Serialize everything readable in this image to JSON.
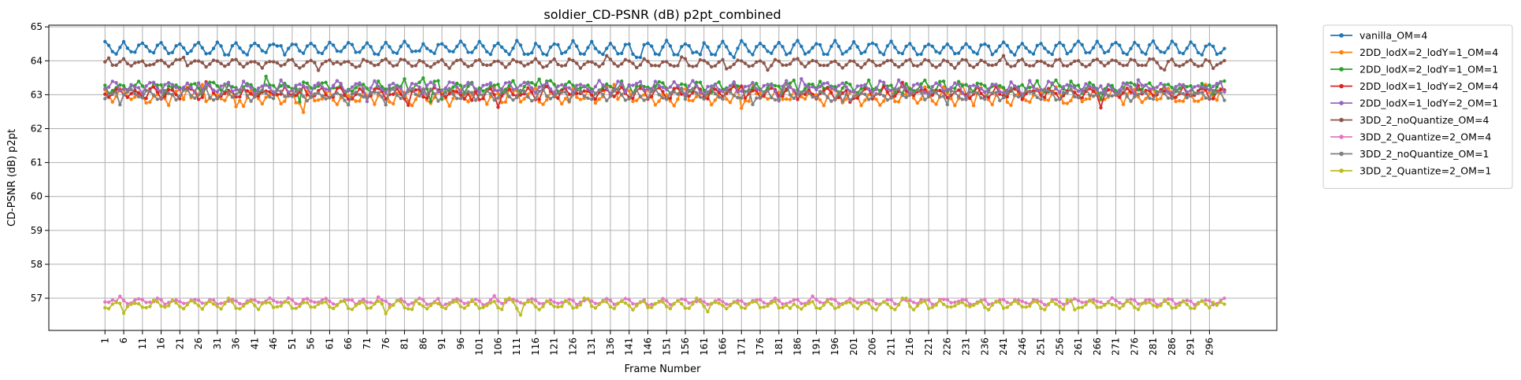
{
  "chart_data": {
    "type": "line",
    "title": "soldier_CD-PSNR (dB) p2pt_combined",
    "xlabel": "Frame Number",
    "ylabel": "CD-PSNR (dB) p2pt",
    "xlim": [
      -14,
      314
    ],
    "ylim": [
      56.05,
      65.05
    ],
    "y_ticks": [
      57,
      58,
      59,
      60,
      61,
      62,
      63,
      64,
      65
    ],
    "x_ticks": [
      1,
      6,
      11,
      16,
      21,
      26,
      31,
      36,
      41,
      46,
      51,
      56,
      61,
      66,
      71,
      76,
      81,
      86,
      91,
      96,
      101,
      106,
      111,
      116,
      121,
      126,
      131,
      136,
      141,
      146,
      151,
      156,
      161,
      166,
      171,
      176,
      181,
      186,
      191,
      196,
      201,
      206,
      211,
      216,
      221,
      226,
      231,
      236,
      241,
      246,
      251,
      256,
      261,
      266,
      271,
      276,
      281,
      286,
      291,
      296
    ],
    "x_range": [
      1,
      300
    ],
    "grid": true,
    "legend_placement": "outside-top-right",
    "series": [
      {
        "name": "vanilla_OM=4",
        "color": "#1f77b4",
        "mean": 64.37,
        "amplitude": 0.17,
        "period": 5,
        "phase": 0.3,
        "noise": 0.06,
        "min": 64.1,
        "max": 64.6
      },
      {
        "name": "2DD_lodX=2_lodY=1_OM=4",
        "color": "#ff7f0e",
        "mean": 62.95,
        "amplitude": 0.18,
        "period": 5,
        "phase": 1.1,
        "noise": 0.12,
        "min": 62.4,
        "max": 63.3
      },
      {
        "name": "2DD_lodX=2_lodY=1_OM=1",
        "color": "#2ca02c",
        "mean": 63.22,
        "amplitude": 0.12,
        "period": 5,
        "phase": 2.0,
        "noise": 0.1,
        "min": 62.8,
        "max": 63.6
      },
      {
        "name": "2DD_lodX=1_lodY=2_OM=4",
        "color": "#d62728",
        "mean": 63.05,
        "amplitude": 0.13,
        "period": 5,
        "phase": 2.9,
        "noise": 0.09,
        "min": 62.4,
        "max": 63.4
      },
      {
        "name": "2DD_lodX=1_lodY=2_OM=1",
        "color": "#9467bd",
        "mean": 63.22,
        "amplitude": 0.13,
        "period": 5,
        "phase": 3.7,
        "noise": 0.09,
        "min": 62.8,
        "max": 63.6
      },
      {
        "name": "3DD_2_noQuantize_OM=4",
        "color": "#8c564b",
        "mean": 63.93,
        "amplitude": 0.1,
        "period": 5,
        "phase": 0.9,
        "noise": 0.05,
        "min": 63.7,
        "max": 64.15
      },
      {
        "name": "3DD_2_Quantize=2_OM=4",
        "color": "#e377c2",
        "mean": 56.9,
        "amplitude": 0.07,
        "period": 5,
        "phase": 1.6,
        "noise": 0.04,
        "min": 56.7,
        "max": 57.1
      },
      {
        "name": "3DD_2_noQuantize_OM=1",
        "color": "#7f7f7f",
        "mean": 63.0,
        "amplitude": 0.12,
        "period": 5,
        "phase": 4.4,
        "noise": 0.08,
        "min": 62.7,
        "max": 63.5
      },
      {
        "name": "3DD_2_Quantize=2_OM=1",
        "color": "#bcbd22",
        "mean": 56.8,
        "amplitude": 0.1,
        "period": 5,
        "phase": 2.5,
        "noise": 0.05,
        "min": 56.5,
        "max": 57.0
      }
    ]
  }
}
